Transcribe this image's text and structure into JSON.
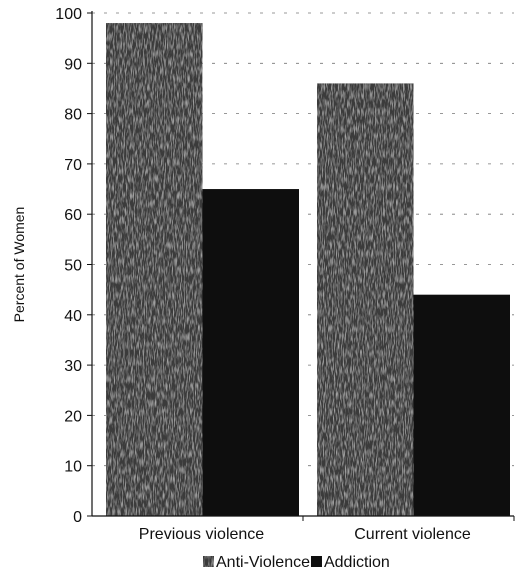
{
  "chart_data": {
    "type": "bar",
    "categories": [
      "Previous violence",
      "Current violence"
    ],
    "series": [
      {
        "name": "Anti-Violence",
        "values": [
          98,
          86
        ],
        "color": "#3a3a3a",
        "texture": "speckled"
      },
      {
        "name": "Addiction",
        "values": [
          65,
          44
        ],
        "color": "#0e0e0e",
        "texture": "solid"
      }
    ],
    "ylabel": "Percent of Women",
    "xlabel": "",
    "ylim": [
      0,
      100
    ],
    "yticks": [
      0,
      10,
      20,
      30,
      40,
      50,
      60,
      70,
      80,
      90,
      100
    ],
    "grid": "dashed horizontal",
    "legend_position": "bottom"
  }
}
